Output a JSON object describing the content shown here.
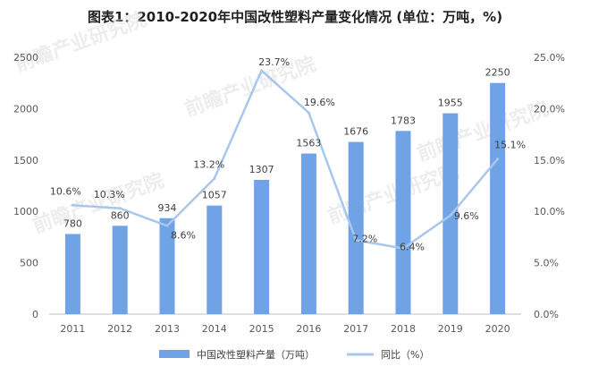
{
  "title": "图表1：2010-2020年中国改性塑料产量变化情况 (单位：万吨，%)",
  "watermark": "前瞻产业研究院",
  "chart_data": {
    "type": "bar",
    "categories": [
      "2011",
      "2012",
      "2013",
      "2014",
      "2015",
      "2016",
      "2017",
      "2018",
      "2019",
      "2020"
    ],
    "series": [
      {
        "name": "中国改性塑料产量（万吨）",
        "type": "bar",
        "axis": "left",
        "color": "#6fa3e6",
        "values": [
          780,
          860,
          934,
          1057,
          1307,
          1563,
          1676,
          1783,
          1955,
          2250
        ]
      },
      {
        "name": "同比（%）",
        "type": "line",
        "axis": "right",
        "color": "#a9c6ec",
        "values": [
          10.6,
          10.3,
          8.6,
          13.2,
          23.7,
          19.6,
          7.2,
          6.4,
          9.6,
          15.1
        ]
      }
    ],
    "bar_labels": [
      "780",
      "860",
      "934",
      "1057",
      "1307",
      "1563",
      "1676",
      "1783",
      "1955",
      "2250"
    ],
    "line_labels": [
      "10.6%",
      "10.3%",
      "8.6%",
      "13.2%",
      "23.7%",
      "19.6%",
      "7.2%",
      "6.4%",
      "9.6%",
      "15.1%"
    ],
    "ylim_left": [
      0,
      2500
    ],
    "yticks_left": [
      "0",
      "500",
      "1000",
      "1500",
      "2000",
      "2500"
    ],
    "ylim_right": [
      0,
      25
    ],
    "yticks_right": [
      "0.0%",
      "5.0%",
      "10.0%",
      "15.0%",
      "20.0%",
      "25.0%"
    ],
    "grid": false,
    "legend_position": "bottom"
  }
}
